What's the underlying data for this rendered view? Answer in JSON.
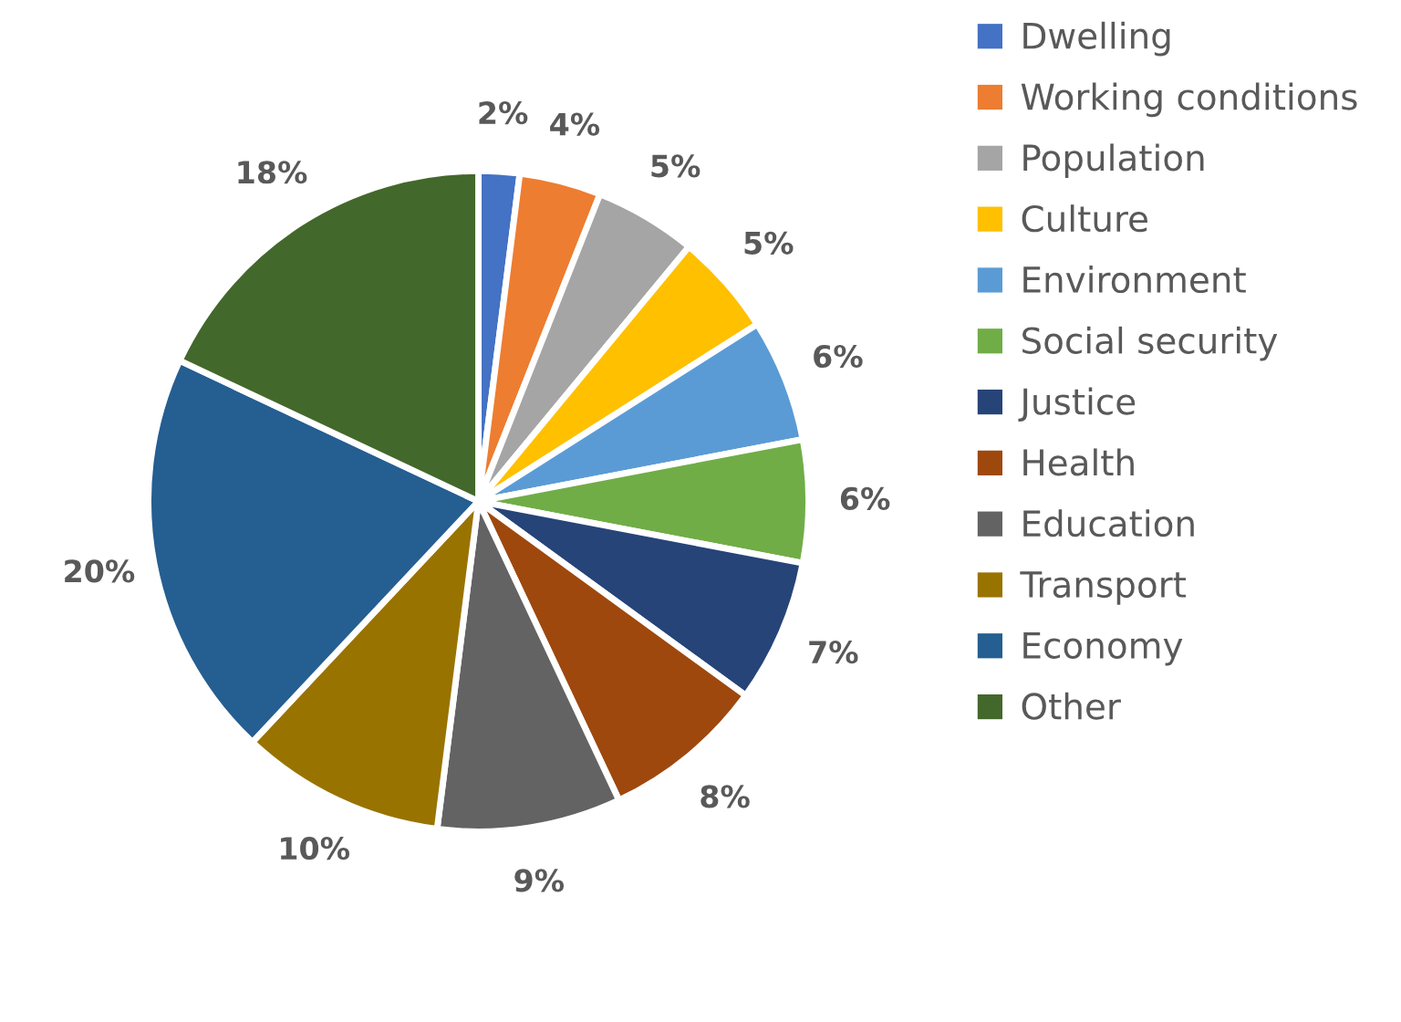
{
  "chart_data": {
    "type": "pie",
    "categories": [
      "Dwelling",
      "Working conditions",
      "Population",
      "Culture",
      "Environment",
      "Social security",
      "Justice",
      "Health",
      "Education",
      "Transport",
      "Economy",
      "Other"
    ],
    "values": [
      2,
      4,
      5,
      5,
      6,
      6,
      7,
      8,
      9,
      10,
      20,
      18
    ],
    "value_labels": [
      "2%",
      "4%",
      "5%",
      "5%",
      "6%",
      "6%",
      "7%",
      "8%",
      "9%",
      "10%",
      "20%",
      "18%"
    ],
    "colors": [
      "#4472c4",
      "#ed7d31",
      "#a5a5a5",
      "#ffc000",
      "#5b9bd5",
      "#70ad47",
      "#264478",
      "#9e480e",
      "#636363",
      "#997300",
      "#255e91",
      "#43682b"
    ],
    "legend": "right"
  }
}
